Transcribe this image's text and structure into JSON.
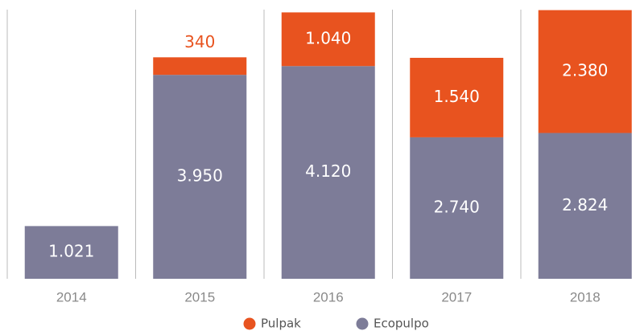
{
  "chart_data": {
    "type": "stacked-bar",
    "categories": [
      "2014",
      "2015",
      "2016",
      "2017",
      "2018"
    ],
    "series": [
      {
        "name": "Ecopulpo",
        "color": "#7d7c98",
        "values": [
          1021,
          3950,
          4120,
          2740,
          2824
        ],
        "value_labels": [
          "1.021",
          "3.950",
          "4.120",
          "2.740",
          "2.824"
        ]
      },
      {
        "name": "Pulpak",
        "color": "#e8531f",
        "values": [
          null,
          340,
          1040,
          1540,
          2380
        ],
        "value_labels": [
          null,
          "340",
          "1.040",
          "1.540",
          "2.380"
        ]
      }
    ],
    "ylim": [
      0,
      5400
    ],
    "legend": "bottom"
  }
}
